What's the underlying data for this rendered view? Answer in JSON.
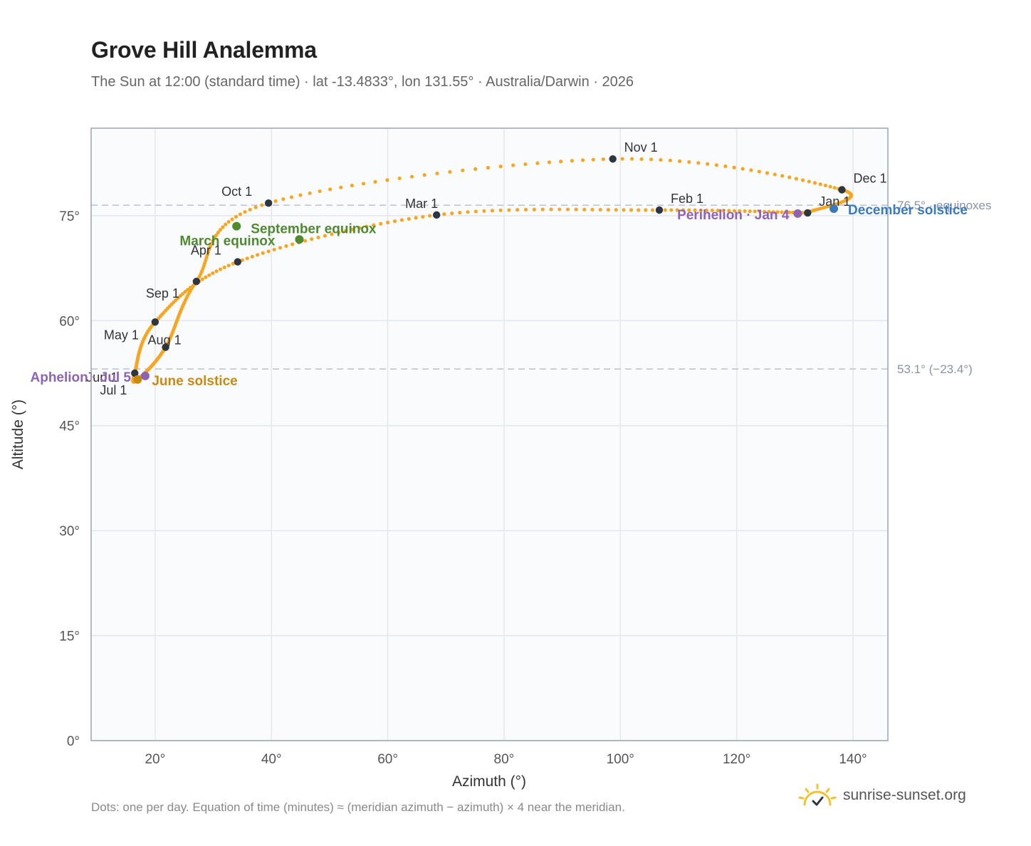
{
  "title": "Grove Hill Analemma",
  "subtitle": "The Sun at 12:00 (standard time) · lat -13.4833°, lon 131.55° · Australia/Darwin · 2026",
  "footnote": "Dots: one per day. Equation of time (minutes) ≈ (meridian azimuth − azimuth) × 4 near the meridian.",
  "brand": {
    "text": "sunrise-sunset.org",
    "icon": "sun-logo-icon"
  },
  "colors": {
    "curve": "#f5a623",
    "month": "#2d3540",
    "equinox": "#4e8a2e",
    "june": "#c98a10",
    "december": "#3a7bbf",
    "apsis": "#8e62b5",
    "refline": "#b8c2cf",
    "grid": "#e3e8ee",
    "plot_bg": "#f9fbfd",
    "frame": "#9aa5b4"
  },
  "chart_data": {
    "type": "scatter",
    "xlabel": "Azimuth (°)",
    "ylabel": "Altitude (°)",
    "xlim": [
      9,
      146
    ],
    "ylim": [
      0,
      87.5
    ],
    "x_ticks": [
      20,
      40,
      60,
      80,
      100,
      120,
      140
    ],
    "x_tick_labels": [
      "20°",
      "40°",
      "60°",
      "80°",
      "100°",
      "120°",
      "140°"
    ],
    "y_ticks": [
      0,
      15,
      30,
      45,
      60,
      75
    ],
    "y_tick_labels": [
      "0°",
      "15°",
      "30°",
      "45°",
      "60°",
      "75°"
    ],
    "grid": true,
    "reference_lines": [
      {
        "y": 76.5,
        "label": "76.5° · equinoxes"
      },
      {
        "y": 53.1,
        "label": "53.1° (−23.4°)"
      }
    ],
    "path_anchors": [
      {
        "date": "Jan 1",
        "az": 132.2,
        "alt": 75.4
      },
      {
        "date": "Feb 1",
        "az": 106.7,
        "alt": 75.8
      },
      {
        "date": "Mar 1",
        "az": 68.4,
        "alt": 75.1
      },
      {
        "date": "Apr 1",
        "az": 34.2,
        "alt": 68.4
      },
      {
        "date": "May 1",
        "az": 20.0,
        "alt": 59.8
      },
      {
        "date": "Jun 1",
        "az": 16.5,
        "alt": 52.5
      },
      {
        "date": "Jul 1",
        "az": 17.0,
        "alt": 51.6
      },
      {
        "date": "Aug 1",
        "az": 21.8,
        "alt": 56.2
      },
      {
        "date": "Sep 1",
        "az": 27.1,
        "alt": 65.6
      },
      {
        "date": "Oct 1",
        "az": 39.5,
        "alt": 76.8
      },
      {
        "date": "Nov 1",
        "az": 98.7,
        "alt": 83.1
      },
      {
        "date": "Dec 1",
        "az": 138.1,
        "alt": 78.7
      },
      {
        "date": "Dec 31",
        "az": 132.0,
        "alt": 75.4
      }
    ],
    "month_markers": [
      {
        "label": "Jan 1",
        "az": 132.2,
        "alt": 75.4
      },
      {
        "label": "Feb 1",
        "az": 106.7,
        "alt": 75.8
      },
      {
        "label": "Mar 1",
        "az": 68.4,
        "alt": 75.1
      },
      {
        "label": "Apr 1",
        "az": 34.2,
        "alt": 68.4
      },
      {
        "label": "May 1",
        "az": 20.0,
        "alt": 59.8
      },
      {
        "label": "Jun 1",
        "az": 16.5,
        "alt": 52.5
      },
      {
        "label": "Jul 1",
        "az": 17.0,
        "alt": 51.6
      },
      {
        "label": "Aug 1",
        "az": 21.8,
        "alt": 56.2
      },
      {
        "label": "Sep 1",
        "az": 27.1,
        "alt": 65.6
      },
      {
        "label": "Oct 1",
        "az": 39.5,
        "alt": 76.8
      },
      {
        "label": "Nov 1",
        "az": 98.7,
        "alt": 83.1
      },
      {
        "label": "Dec 1",
        "az": 138.1,
        "alt": 78.7
      }
    ],
    "events": [
      {
        "label": "March equinox",
        "az": 44.8,
        "alt": 71.6,
        "color_key": "equinox"
      },
      {
        "label": "September equinox",
        "az": 34.0,
        "alt": 73.5,
        "color_key": "equinox"
      },
      {
        "label": "June solstice",
        "az": 17.0,
        "alt": 51.6,
        "color_key": "june"
      },
      {
        "label": "December solstice",
        "az": 136.7,
        "alt": 76.0,
        "color_key": "december"
      },
      {
        "label": "Perihelion · Jan 4",
        "az": 130.5,
        "alt": 75.3,
        "color_key": "apsis"
      },
      {
        "label": "Aphelion · Jul 5",
        "az": 18.3,
        "alt": 52.1,
        "color_key": "apsis"
      }
    ]
  }
}
